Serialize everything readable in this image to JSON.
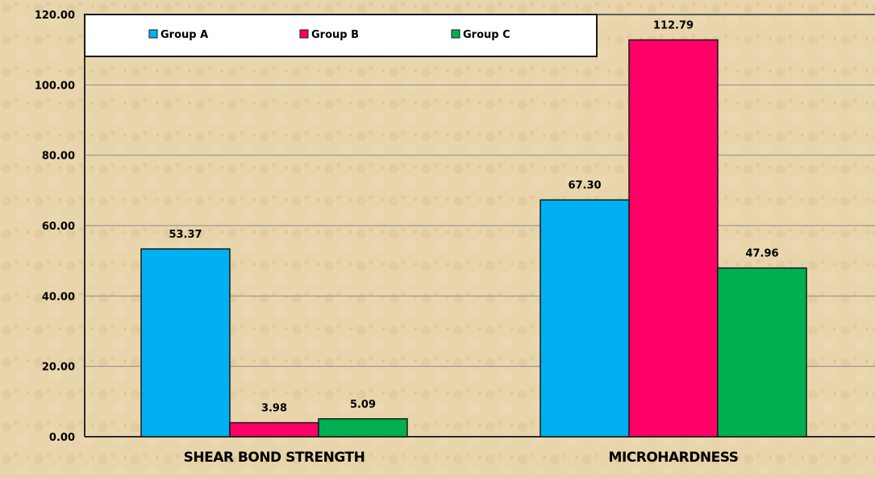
{
  "chart_data": {
    "type": "bar",
    "categories": [
      "SHEAR BOND STRENGTH",
      "MICROHARDNESS"
    ],
    "series": [
      {
        "name": "Group A",
        "color": "#00b0f0",
        "values": [
          53.37,
          67.3
        ],
        "labels": [
          "53.37",
          "67.30"
        ]
      },
      {
        "name": "Group B",
        "color": "#ff0066",
        "values": [
          3.98,
          112.79
        ],
        "labels": [
          "3.98",
          "112.79"
        ]
      },
      {
        "name": "Group C",
        "color": "#00b050",
        "values": [
          5.09,
          47.96
        ],
        "labels": [
          "5.09",
          "47.96"
        ]
      }
    ],
    "ylim": [
      0,
      120
    ],
    "yticks": [
      "0.00",
      "20.00",
      "40.00",
      "60.00",
      "80.00",
      "100.00",
      "120.00"
    ],
    "title": "",
    "xlabel": "",
    "ylabel": "",
    "grid": true,
    "legend": "top-left inside plot"
  }
}
